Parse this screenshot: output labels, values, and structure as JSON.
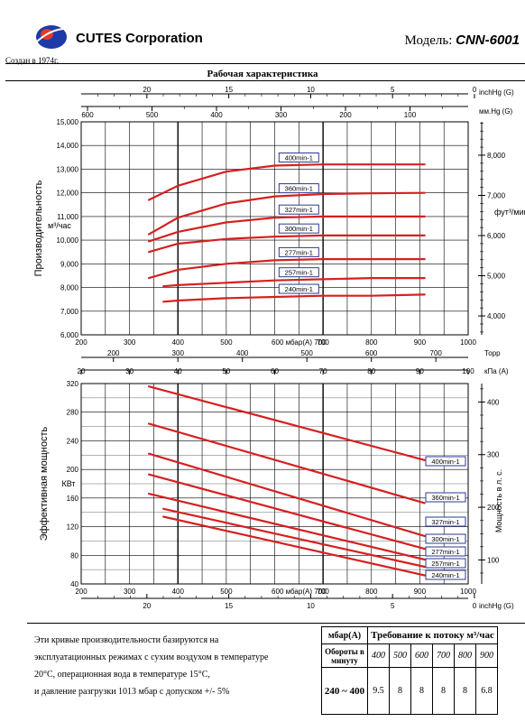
{
  "header": {
    "company": "CUTES Corporation",
    "founded": "Создан в 1974г.",
    "model_label": "Модель:",
    "model": "CNN-6001"
  },
  "title": "Рабочая характеристика",
  "chart_data": [
    {
      "type": "line",
      "ylabel": "Производительность",
      "yunit": "м³/час",
      "right_label": "фут³/мин",
      "xlim": [
        200,
        1000
      ],
      "ylim": [
        6000,
        15000
      ],
      "right_ylim": [
        3530,
        8830
      ],
      "yticks": [
        "6,000",
        "7,000",
        "8,000",
        "9,000",
        "10,000",
        "11,000",
        "12,000",
        "13,000",
        "14,000",
        "15,000"
      ],
      "right_ticks": [
        "4,000",
        "5,000",
        "6,000",
        "7,000",
        "8,000"
      ],
      "top_inch_label": "inchHg (G)",
      "top_inch_ticks": [
        "20",
        "15",
        "10",
        "5",
        "0"
      ],
      "top_mm_label": "мм.Hg (G)",
      "top_mm_ticks": [
        "600",
        "500",
        "400",
        "300",
        "200",
        "100"
      ],
      "bottom_ticks": [
        "200",
        "300",
        "400",
        "500",
        "600",
        "700",
        "800",
        "900",
        "1000"
      ],
      "bottom_center_label": "мбар(A)",
      "series": [
        {
          "name": "400min-1",
          "x": [
            340,
            400,
            500,
            600,
            700,
            800,
            910
          ],
          "y": [
            11700,
            12300,
            12900,
            13150,
            13200,
            13200,
            13200
          ]
        },
        {
          "name": "360min-1",
          "x": [
            340,
            400,
            500,
            600,
            700,
            800,
            910
          ],
          "y": [
            10250,
            10950,
            11550,
            11850,
            11950,
            11980,
            12000
          ]
        },
        {
          "name": "327min-1",
          "x": [
            340,
            400,
            500,
            600,
            700,
            800,
            910
          ],
          "y": [
            9950,
            10350,
            10750,
            10950,
            11000,
            11000,
            11000
          ]
        },
        {
          "name": "300min-1",
          "x": [
            340,
            400,
            500,
            600,
            700,
            800,
            910
          ],
          "y": [
            9500,
            9850,
            10050,
            10150,
            10200,
            10200,
            10200
          ]
        },
        {
          "name": "277min-1",
          "x": [
            340,
            400,
            500,
            600,
            700,
            800,
            910
          ],
          "y": [
            8400,
            8750,
            9000,
            9150,
            9200,
            9200,
            9200
          ]
        },
        {
          "name": "257min-1",
          "x": [
            370,
            400,
            500,
            600,
            700,
            800,
            910
          ],
          "y": [
            8050,
            8100,
            8200,
            8300,
            8350,
            8400,
            8400
          ]
        },
        {
          "name": "240min-1",
          "x": [
            370,
            400,
            500,
            600,
            700,
            800,
            910
          ],
          "y": [
            7400,
            7450,
            7550,
            7600,
            7650,
            7650,
            7700
          ]
        }
      ]
    },
    {
      "type": "line",
      "ylabel": "Эффективная мощность",
      "yunit": "КВт",
      "right_label": "Мощность в л. с.",
      "xlim": [
        200,
        1000
      ],
      "ylim": [
        40,
        320
      ],
      "right_ylim": [
        54.4,
        435
      ],
      "yticks": [
        "40",
        "80",
        "120",
        "160",
        "200",
        "240",
        "280",
        "320"
      ],
      "right_ticks": [
        "100",
        "200",
        "300",
        "400"
      ],
      "top_torr_label": "Торр",
      "top_torr_ticks": [
        "200",
        "300",
        "400",
        "500",
        "600",
        "700"
      ],
      "top_kpa_label": "кПа (А)",
      "top_kpa_ticks": [
        "20",
        "30",
        "40",
        "50",
        "60",
        "70",
        "80",
        "90",
        "100"
      ],
      "bottom_ticks": [
        "200",
        "300",
        "400",
        "500",
        "600",
        "700",
        "800",
        "900",
        "1000"
      ],
      "bottom_center_label": "мбар(A)",
      "inch_ticks": [
        "20",
        "15",
        "10",
        "5",
        "0"
      ],
      "inch_label": "inchHg (G)",
      "series": [
        {
          "name": "400min-1",
          "x": [
            340,
            910
          ],
          "y": [
            316,
            213
          ]
        },
        {
          "name": "360min-1",
          "x": [
            340,
            910
          ],
          "y": [
            264,
            153
          ]
        },
        {
          "name": "327min-1",
          "x": [
            340,
            910
          ],
          "y": [
            222,
            107
          ]
        },
        {
          "name": "300min-1",
          "x": [
            340,
            910
          ],
          "y": [
            193,
            89
          ]
        },
        {
          "name": "277min-1",
          "x": [
            340,
            910
          ],
          "y": [
            166,
            74
          ]
        },
        {
          "name": "257min-1",
          "x": [
            370,
            910
          ],
          "y": [
            145,
            64
          ]
        },
        {
          "name": "240min-1",
          "x": [
            370,
            910
          ],
          "y": [
            134,
            52
          ]
        }
      ]
    }
  ],
  "note": {
    "lines": [
      "Эти кривые производительности базируются на",
      "эксплуатационных режимах с сухим воздухом в температуре",
      "20°C, операционная вода в температуре 15°C,",
      "и давление разгрузки 1013 мбар с допуском +/- 5%"
    ]
  },
  "table": {
    "col1_header": "мбар(A)",
    "requirement_header": "Требование к потоку м³/час",
    "speed_header": "Обороты в минуту",
    "mbar_columns": [
      "400",
      "500",
      "600",
      "700",
      "800",
      "900"
    ],
    "speed_value": "240 ~ 400",
    "values": [
      "9.5",
      "8",
      "8",
      "8",
      "8",
      "6.8"
    ]
  },
  "colors": {
    "curve": "#d62020",
    "label_border": "#2a3a8c",
    "grid": "#000000",
    "logo": "#1f3aa8"
  }
}
